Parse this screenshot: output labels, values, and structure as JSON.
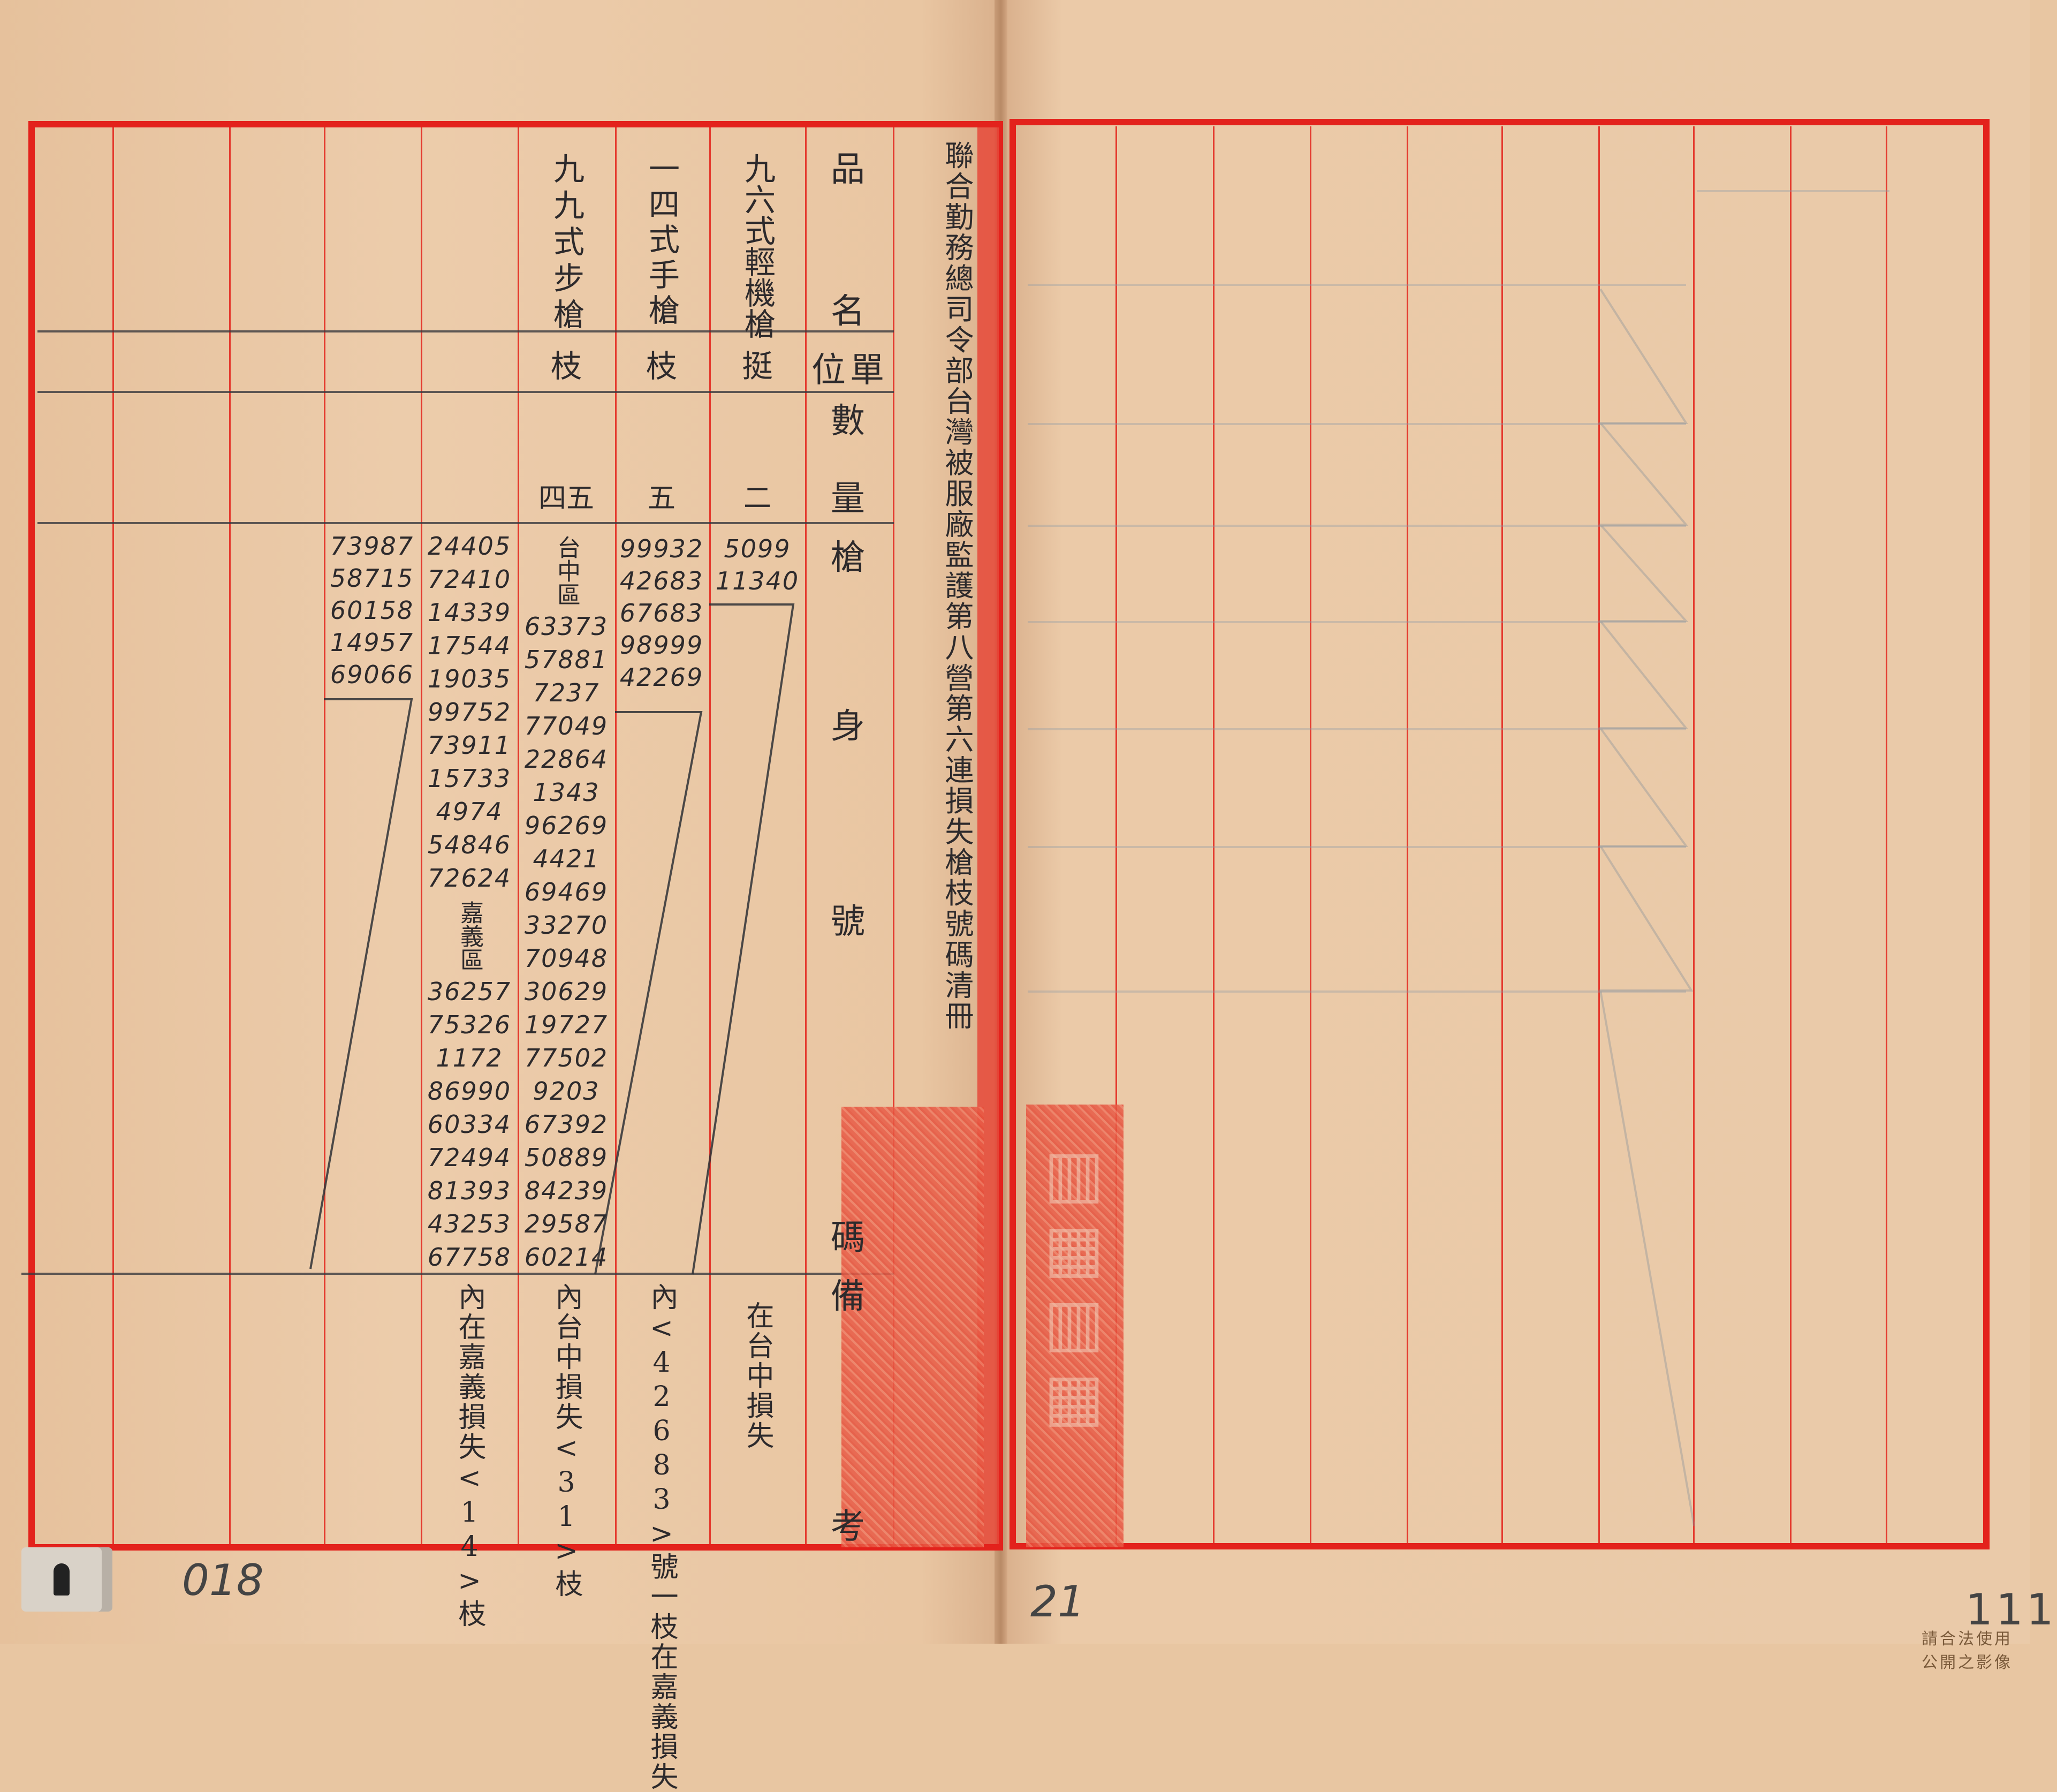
{
  "title": "聯合勤務總司令部台灣被服廠監護第八營第六連損失槍枝號碼清冊",
  "header": {
    "name": [
      "品",
      "名"
    ],
    "unit": [
      "單",
      "位"
    ],
    "quantity": [
      "數",
      "量"
    ],
    "serial": [
      "槍",
      "身",
      "號",
      "碼"
    ],
    "remarks": [
      "備",
      "考"
    ]
  },
  "items": [
    {
      "name": "九六式輕機槍",
      "unit": "挺",
      "quantity": "二",
      "serials": [
        "5099",
        "11340"
      ],
      "remarks": "在台中損失"
    },
    {
      "name": "一四式手槍",
      "unit": "枝",
      "quantity": "五",
      "serials": [
        "99932",
        "42683",
        "67683",
        "98999",
        "42269"
      ],
      "remarks": "內<42683>號一枝在嘉義損失"
    },
    {
      "name": "九九式步槍",
      "unit": "枝",
      "quantity": "四五",
      "serial_columns": [
        [
          "台中區",
          "63373",
          "57881",
          "7237",
          "77049",
          "22864",
          "1343",
          "96269",
          "4421",
          "69469",
          "33270",
          "70948",
          "30629",
          "19727",
          "77502",
          "9203",
          "67392",
          "50889",
          "84239",
          "29587",
          "60214"
        ],
        [
          "24405",
          "72410",
          "14339",
          "17544",
          "19035",
          "99752",
          "73911",
          "15733",
          "4974",
          "54846",
          "72624",
          "嘉義區",
          "36257",
          "75326",
          "1172",
          "86990",
          "60334",
          "72494",
          "81393",
          "43253",
          "67758"
        ],
        [
          "73987",
          "58715",
          "60158",
          "14957",
          "69066"
        ]
      ],
      "remarks": [
        "內台中損失<31>枝",
        "內在嘉義損失<14>枝"
      ]
    }
  ],
  "page_numbers": [
    "018",
    "21",
    "111"
  ],
  "watermark": "請合法使用公開之影像",
  "colors": {
    "paper": "#e8c6a2",
    "rule_red": "#e3221c",
    "ink": "#2d2a2c",
    "seal": "#e85a45"
  }
}
